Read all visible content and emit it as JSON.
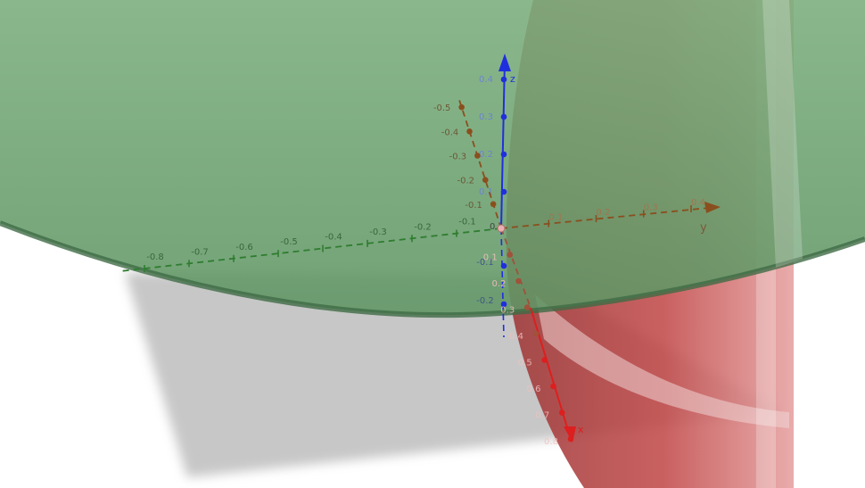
{
  "axes": {
    "x": {
      "name": "x",
      "color": "#dd1f1f",
      "tick_labels": [
        "0.1",
        "0.2",
        "0.3",
        "0.4",
        "0.5",
        "0.6",
        "0.7",
        "0.8"
      ]
    },
    "y": {
      "name": "y",
      "color": "#8a4f1e",
      "neg_labels": [
        "-0.1",
        "-0.2",
        "-0.3",
        "-0.4",
        "-0.5"
      ],
      "pos_labels": [
        "0.1",
        "0.2",
        "0.3",
        "0.4"
      ]
    },
    "z": {
      "name": "z",
      "color": "#1f2fdd",
      "pos_labels": [
        "0.1",
        "0.2",
        "0.3",
        "0.4"
      ],
      "neg_labels": [
        "-0.1",
        "-0.2"
      ]
    },
    "w": {
      "color": "#2f7d2f",
      "neg_labels": [
        "-0.1",
        "-0.2",
        "-0.3",
        "-0.4",
        "-0.5",
        "-0.6",
        "-0.7",
        "-0.8"
      ]
    },
    "origin_label": "0"
  },
  "surfaces": {
    "green": {
      "color": "#6aa86f",
      "edge": "#3f6b45"
    },
    "red": {
      "color": "#c94a4a"
    },
    "shadow": {
      "color": "#9a9a9a"
    }
  }
}
